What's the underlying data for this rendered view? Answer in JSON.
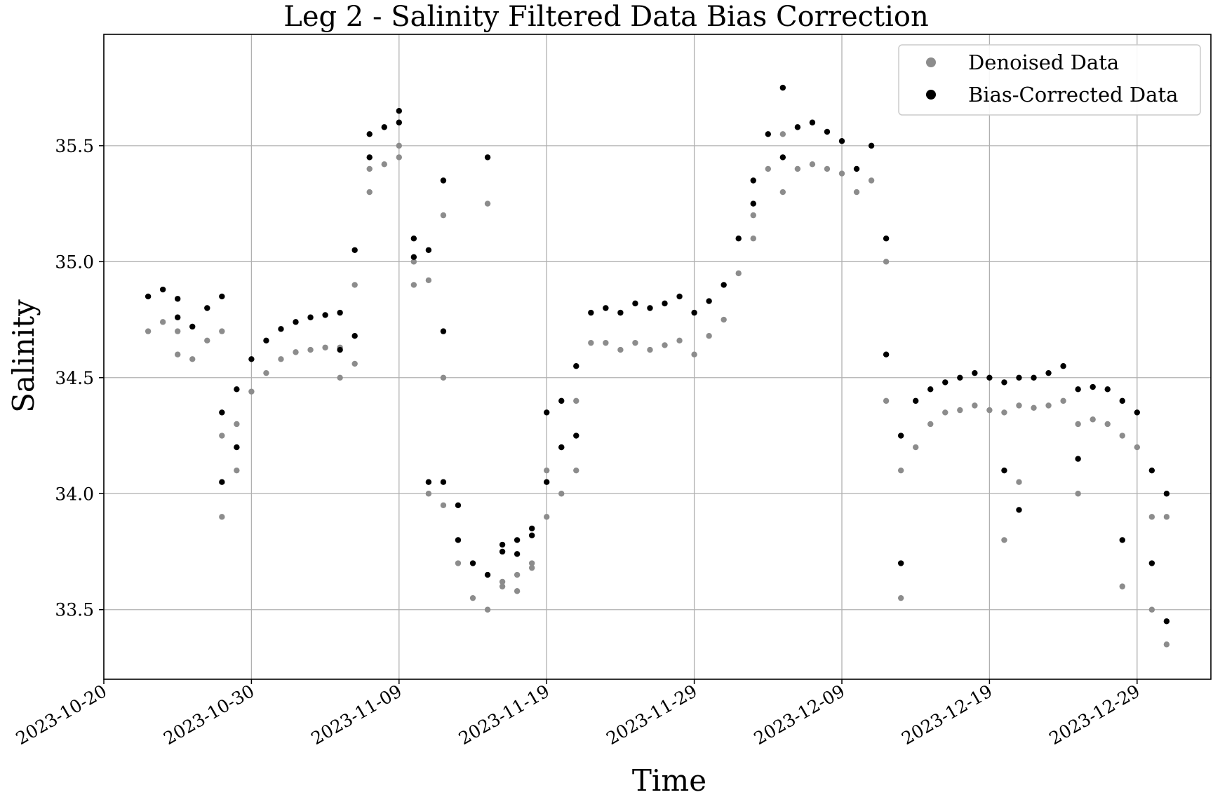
{
  "chart_data": {
    "type": "scatter",
    "title": "Leg 2 - Salinity Filtered Data Bias Correction",
    "xlabel": "Time",
    "ylabel": "Salinity",
    "x_type": "date",
    "xlim": [
      "2023-10-20",
      "2024-01-03"
    ],
    "ylim": [
      33.2,
      35.98
    ],
    "x_ticks": [
      "2023-10-20",
      "2023-10-30",
      "2023-11-09",
      "2023-11-19",
      "2023-11-29",
      "2023-12-09",
      "2023-12-19",
      "2023-12-29"
    ],
    "y_ticks": [
      33.5,
      34.0,
      34.5,
      35.0,
      35.5
    ],
    "y_tick_labels": [
      "33.5",
      "34.0",
      "34.5",
      "35.0",
      "35.5"
    ],
    "grid": true,
    "legend_position": "top-right",
    "series": [
      {
        "name": "Denoised Data",
        "color": "#8c8c8c",
        "points": [
          [
            "2023-10-23",
            34.7
          ],
          [
            "2023-10-24",
            34.74
          ],
          [
            "2023-10-25",
            34.7
          ],
          [
            "2023-10-25",
            34.6
          ],
          [
            "2023-10-26",
            34.58
          ],
          [
            "2023-10-27",
            34.66
          ],
          [
            "2023-10-28",
            34.7
          ],
          [
            "2023-10-28",
            34.25
          ],
          [
            "2023-10-28",
            33.9
          ],
          [
            "2023-10-29",
            34.1
          ],
          [
            "2023-10-29",
            34.3
          ],
          [
            "2023-10-30",
            34.44
          ],
          [
            "2023-10-31",
            34.52
          ],
          [
            "2023-11-01",
            34.58
          ],
          [
            "2023-11-02",
            34.61
          ],
          [
            "2023-11-03",
            34.62
          ],
          [
            "2023-11-04",
            34.63
          ],
          [
            "2023-11-05",
            34.63
          ],
          [
            "2023-11-05",
            34.5
          ],
          [
            "2023-11-06",
            34.56
          ],
          [
            "2023-11-06",
            34.9
          ],
          [
            "2023-11-07",
            35.3
          ],
          [
            "2023-11-07",
            35.4
          ],
          [
            "2023-11-08",
            35.42
          ],
          [
            "2023-11-09",
            35.5
          ],
          [
            "2023-11-09",
            35.45
          ],
          [
            "2023-11-10",
            35.0
          ],
          [
            "2023-11-10",
            34.9
          ],
          [
            "2023-11-11",
            34.92
          ],
          [
            "2023-11-11",
            34.0
          ],
          [
            "2023-11-12",
            35.2
          ],
          [
            "2023-11-12",
            34.5
          ],
          [
            "2023-11-12",
            33.95
          ],
          [
            "2023-11-13",
            33.8
          ],
          [
            "2023-11-13",
            33.7
          ],
          [
            "2023-11-14",
            33.55
          ],
          [
            "2023-11-15",
            33.5
          ],
          [
            "2023-11-15",
            35.25
          ],
          [
            "2023-11-16",
            33.6
          ],
          [
            "2023-11-16",
            33.62
          ],
          [
            "2023-11-17",
            33.65
          ],
          [
            "2023-11-17",
            33.58
          ],
          [
            "2023-11-18",
            33.7
          ],
          [
            "2023-11-18",
            33.68
          ],
          [
            "2023-11-19",
            33.9
          ],
          [
            "2023-11-19",
            34.1
          ],
          [
            "2023-11-20",
            34.0
          ],
          [
            "2023-11-20",
            34.2
          ],
          [
            "2023-11-21",
            34.1
          ],
          [
            "2023-11-21",
            34.4
          ],
          [
            "2023-11-22",
            34.65
          ],
          [
            "2023-11-23",
            34.65
          ],
          [
            "2023-11-24",
            34.62
          ],
          [
            "2023-11-25",
            34.65
          ],
          [
            "2023-11-26",
            34.62
          ],
          [
            "2023-11-27",
            34.64
          ],
          [
            "2023-11-28",
            34.66
          ],
          [
            "2023-11-29",
            34.6
          ],
          [
            "2023-11-30",
            34.68
          ],
          [
            "2023-12-01",
            34.75
          ],
          [
            "2023-12-02",
            34.95
          ],
          [
            "2023-12-03",
            35.1
          ],
          [
            "2023-12-03",
            35.2
          ],
          [
            "2023-12-04",
            35.4
          ],
          [
            "2023-12-05",
            35.55
          ],
          [
            "2023-12-05",
            35.3
          ],
          [
            "2023-12-06",
            35.4
          ],
          [
            "2023-12-07",
            35.42
          ],
          [
            "2023-12-08",
            35.4
          ],
          [
            "2023-12-09",
            35.38
          ],
          [
            "2023-12-10",
            35.3
          ],
          [
            "2023-12-11",
            35.35
          ],
          [
            "2023-12-12",
            35.0
          ],
          [
            "2023-12-12",
            34.4
          ],
          [
            "2023-12-13",
            33.55
          ],
          [
            "2023-12-13",
            34.1
          ],
          [
            "2023-12-14",
            34.2
          ],
          [
            "2023-12-15",
            34.3
          ],
          [
            "2023-12-16",
            34.35
          ],
          [
            "2023-12-17",
            34.36
          ],
          [
            "2023-12-18",
            34.38
          ],
          [
            "2023-12-19",
            34.36
          ],
          [
            "2023-12-20",
            34.35
          ],
          [
            "2023-12-20",
            33.8
          ],
          [
            "2023-12-21",
            34.38
          ],
          [
            "2023-12-21",
            34.05
          ],
          [
            "2023-12-22",
            34.37
          ],
          [
            "2023-12-23",
            34.38
          ],
          [
            "2023-12-24",
            34.4
          ],
          [
            "2023-12-25",
            34.0
          ],
          [
            "2023-12-25",
            34.3
          ],
          [
            "2023-12-26",
            34.32
          ],
          [
            "2023-12-27",
            34.3
          ],
          [
            "2023-12-28",
            34.25
          ],
          [
            "2023-12-28",
            33.6
          ],
          [
            "2023-12-29",
            34.2
          ],
          [
            "2023-12-30",
            33.9
          ],
          [
            "2023-12-30",
            33.5
          ],
          [
            "2023-12-31",
            33.35
          ],
          [
            "2023-12-31",
            33.9
          ]
        ]
      },
      {
        "name": "Bias-Corrected Data",
        "color": "#000000",
        "points": [
          [
            "2023-10-23",
            34.85
          ],
          [
            "2023-10-24",
            34.88
          ],
          [
            "2023-10-25",
            34.84
          ],
          [
            "2023-10-25",
            34.76
          ],
          [
            "2023-10-26",
            34.72
          ],
          [
            "2023-10-27",
            34.8
          ],
          [
            "2023-10-28",
            34.85
          ],
          [
            "2023-10-28",
            34.35
          ],
          [
            "2023-10-28",
            34.05
          ],
          [
            "2023-10-29",
            34.2
          ],
          [
            "2023-10-29",
            34.45
          ],
          [
            "2023-10-30",
            34.58
          ],
          [
            "2023-10-31",
            34.66
          ],
          [
            "2023-11-01",
            34.71
          ],
          [
            "2023-11-02",
            34.74
          ],
          [
            "2023-11-03",
            34.76
          ],
          [
            "2023-11-04",
            34.77
          ],
          [
            "2023-11-05",
            34.78
          ],
          [
            "2023-11-05",
            34.62
          ],
          [
            "2023-11-06",
            34.68
          ],
          [
            "2023-11-06",
            35.05
          ],
          [
            "2023-11-07",
            35.45
          ],
          [
            "2023-11-07",
            35.55
          ],
          [
            "2023-11-08",
            35.58
          ],
          [
            "2023-11-09",
            35.65
          ],
          [
            "2023-11-09",
            35.6
          ],
          [
            "2023-11-10",
            35.1
          ],
          [
            "2023-11-10",
            35.02
          ],
          [
            "2023-11-11",
            35.05
          ],
          [
            "2023-11-11",
            34.05
          ],
          [
            "2023-11-12",
            35.35
          ],
          [
            "2023-11-12",
            34.7
          ],
          [
            "2023-11-12",
            34.05
          ],
          [
            "2023-11-13",
            33.95
          ],
          [
            "2023-11-13",
            33.8
          ],
          [
            "2023-11-14",
            33.7
          ],
          [
            "2023-11-15",
            33.65
          ],
          [
            "2023-11-15",
            35.45
          ],
          [
            "2023-11-16",
            33.75
          ],
          [
            "2023-11-16",
            33.78
          ],
          [
            "2023-11-17",
            33.8
          ],
          [
            "2023-11-17",
            33.74
          ],
          [
            "2023-11-18",
            33.85
          ],
          [
            "2023-11-18",
            33.82
          ],
          [
            "2023-11-19",
            34.05
          ],
          [
            "2023-11-19",
            34.35
          ],
          [
            "2023-11-20",
            34.2
          ],
          [
            "2023-11-20",
            34.4
          ],
          [
            "2023-11-21",
            34.25
          ],
          [
            "2023-11-21",
            34.55
          ],
          [
            "2023-11-22",
            34.78
          ],
          [
            "2023-11-23",
            34.8
          ],
          [
            "2023-11-24",
            34.78
          ],
          [
            "2023-11-25",
            34.82
          ],
          [
            "2023-11-26",
            34.8
          ],
          [
            "2023-11-27",
            34.82
          ],
          [
            "2023-11-28",
            34.85
          ],
          [
            "2023-11-29",
            34.78
          ],
          [
            "2023-11-30",
            34.83
          ],
          [
            "2023-12-01",
            34.9
          ],
          [
            "2023-12-02",
            35.1
          ],
          [
            "2023-12-03",
            35.25
          ],
          [
            "2023-12-03",
            35.35
          ],
          [
            "2023-12-04",
            35.55
          ],
          [
            "2023-12-05",
            35.75
          ],
          [
            "2023-12-05",
            35.45
          ],
          [
            "2023-12-06",
            35.58
          ],
          [
            "2023-12-07",
            35.6
          ],
          [
            "2023-12-08",
            35.56
          ],
          [
            "2023-12-09",
            35.52
          ],
          [
            "2023-12-10",
            35.4
          ],
          [
            "2023-12-11",
            35.5
          ],
          [
            "2023-12-12",
            35.1
          ],
          [
            "2023-12-12",
            34.6
          ],
          [
            "2023-12-13",
            33.7
          ],
          [
            "2023-12-13",
            34.25
          ],
          [
            "2023-12-14",
            34.4
          ],
          [
            "2023-12-15",
            34.45
          ],
          [
            "2023-12-16",
            34.48
          ],
          [
            "2023-12-17",
            34.5
          ],
          [
            "2023-12-18",
            34.52
          ],
          [
            "2023-12-19",
            34.5
          ],
          [
            "2023-12-20",
            34.48
          ],
          [
            "2023-12-20",
            34.1
          ],
          [
            "2023-12-21",
            34.5
          ],
          [
            "2023-12-21",
            33.93
          ],
          [
            "2023-12-22",
            34.5
          ],
          [
            "2023-12-23",
            34.52
          ],
          [
            "2023-12-24",
            34.55
          ],
          [
            "2023-12-25",
            34.15
          ],
          [
            "2023-12-25",
            34.45
          ],
          [
            "2023-12-26",
            34.46
          ],
          [
            "2023-12-27",
            34.45
          ],
          [
            "2023-12-28",
            34.4
          ],
          [
            "2023-12-28",
            33.8
          ],
          [
            "2023-12-29",
            34.35
          ],
          [
            "2023-12-30",
            34.1
          ],
          [
            "2023-12-30",
            33.7
          ],
          [
            "2023-12-31",
            33.45
          ],
          [
            "2023-12-31",
            34.0
          ]
        ]
      }
    ]
  }
}
